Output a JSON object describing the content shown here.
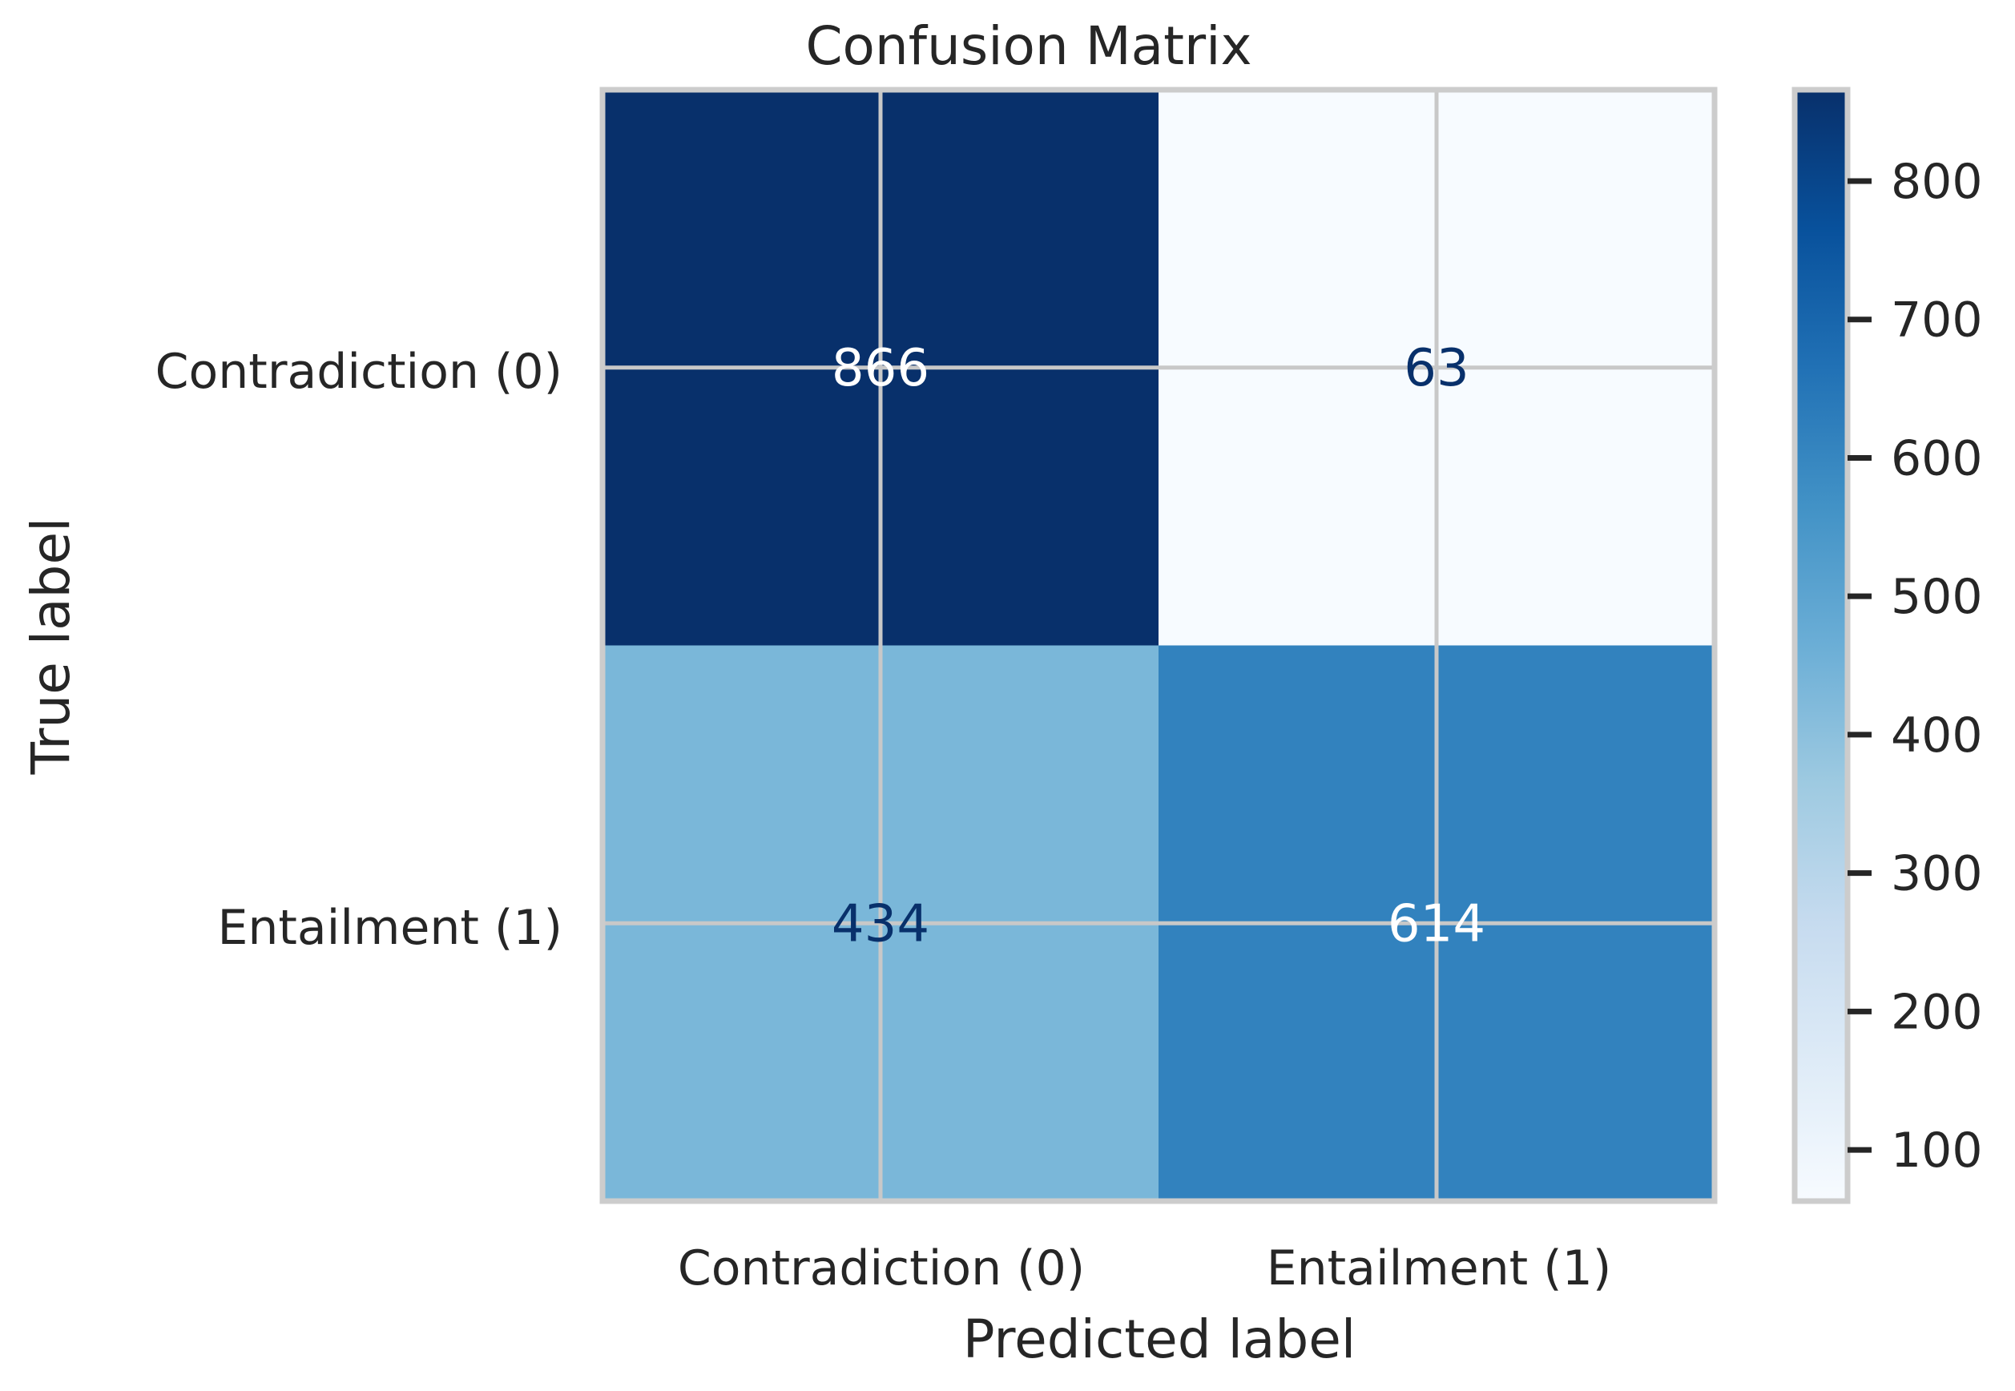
{
  "chart_data": {
    "type": "heatmap",
    "title": "Confusion Matrix",
    "xlabel": "Predicted label",
    "ylabel": "True label",
    "x_categories": [
      "Contradiction (0)",
      "Entailment (1)"
    ],
    "y_categories": [
      "Contradiction (0)",
      "Entailment (1)"
    ],
    "matrix": [
      [
        866,
        63
      ],
      [
        434,
        614
      ]
    ],
    "colormap": "Blues",
    "colorbar": {
      "ticks": [
        100,
        200,
        300,
        400,
        500,
        600,
        700,
        800
      ],
      "tick_labels": [
        "100",
        "200",
        "300",
        "400",
        "500",
        "600",
        "700",
        "800"
      ],
      "range": [
        63,
        866
      ]
    },
    "grid": true,
    "colors": {
      "text_dark": "#08306b",
      "text_light": "#ffffff",
      "grid": "#c8c8c8",
      "frame": "#cccccc"
    }
  }
}
